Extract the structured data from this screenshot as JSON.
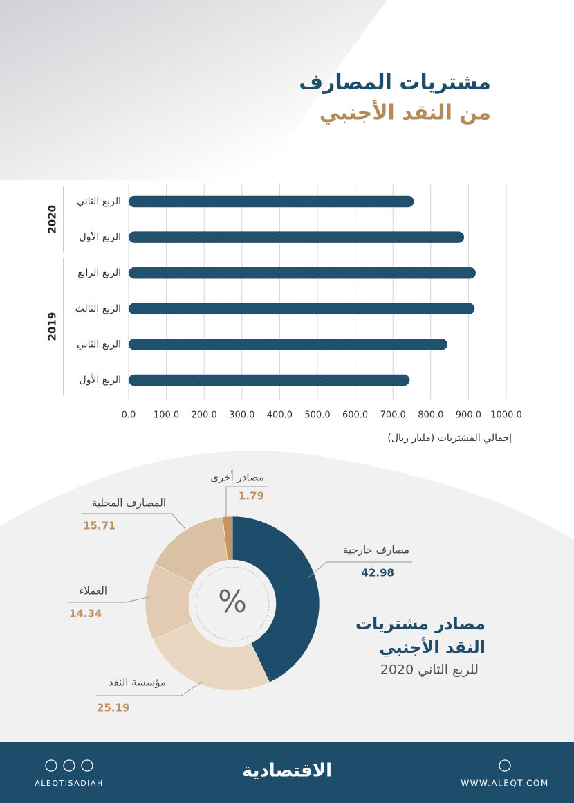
{
  "chart_data": [
    {
      "type": "hbar",
      "title": "مشتريات المصارف",
      "subtitle": "من النقد الأجنبي",
      "groups": [
        {
          "name": "2020",
          "categories": [
            "الربع الثاني",
            "الربع الأول"
          ],
          "values": [
            755,
            888
          ]
        },
        {
          "name": "2019",
          "categories": [
            "الربع الرابع",
            "الربع الثالث",
            "الربع الثاني",
            "الربع الأول"
          ],
          "values": [
            919,
            916,
            844,
            744
          ]
        }
      ],
      "color": "#1e4d6b",
      "xlim": [
        0,
        1000
      ],
      "xticks": [
        {
          "value": 0,
          "label": "0.0"
        },
        {
          "value": 100,
          "label": "100.0"
        },
        {
          "value": 200,
          "label": "200.0"
        },
        {
          "value": 300,
          "label": "300.0"
        },
        {
          "value": 400,
          "label": "400.0"
        },
        {
          "value": 500,
          "label": "500.0"
        },
        {
          "value": 600,
          "label": "600.0"
        },
        {
          "value": 700,
          "label": "700.0"
        },
        {
          "value": 800,
          "label": "800.0"
        },
        {
          "value": 900,
          "label": "900.0"
        },
        {
          "value": 1000,
          "label": "1000.0"
        }
      ],
      "xlabel": "إجمالي المشتريات (مليار ريال)",
      "grid": true
    },
    {
      "type": "donut",
      "title": "مصادر مشتريات",
      "title_line2": "النقد الأجنبي",
      "subtitle": "للربع الثاني 2020",
      "center_label": "%",
      "categories": [
        "مصارف خارجية",
        "مؤسسة النقد",
        "العملاء",
        "المصارف المحلية",
        "مصادر أخرى"
      ],
      "values": [
        42.98,
        25.19,
        14.34,
        15.71,
        1.79
      ],
      "colors": [
        "#1e4d6b",
        "#e8d6c0",
        "#e2cbb2",
        "#dbc1a4",
        "#c9935f"
      ]
    }
  ],
  "footer": {
    "handle": "ALEQTISADIAH",
    "logo": "الاقتصادية",
    "website": "WWW.ALEQT.COM"
  }
}
